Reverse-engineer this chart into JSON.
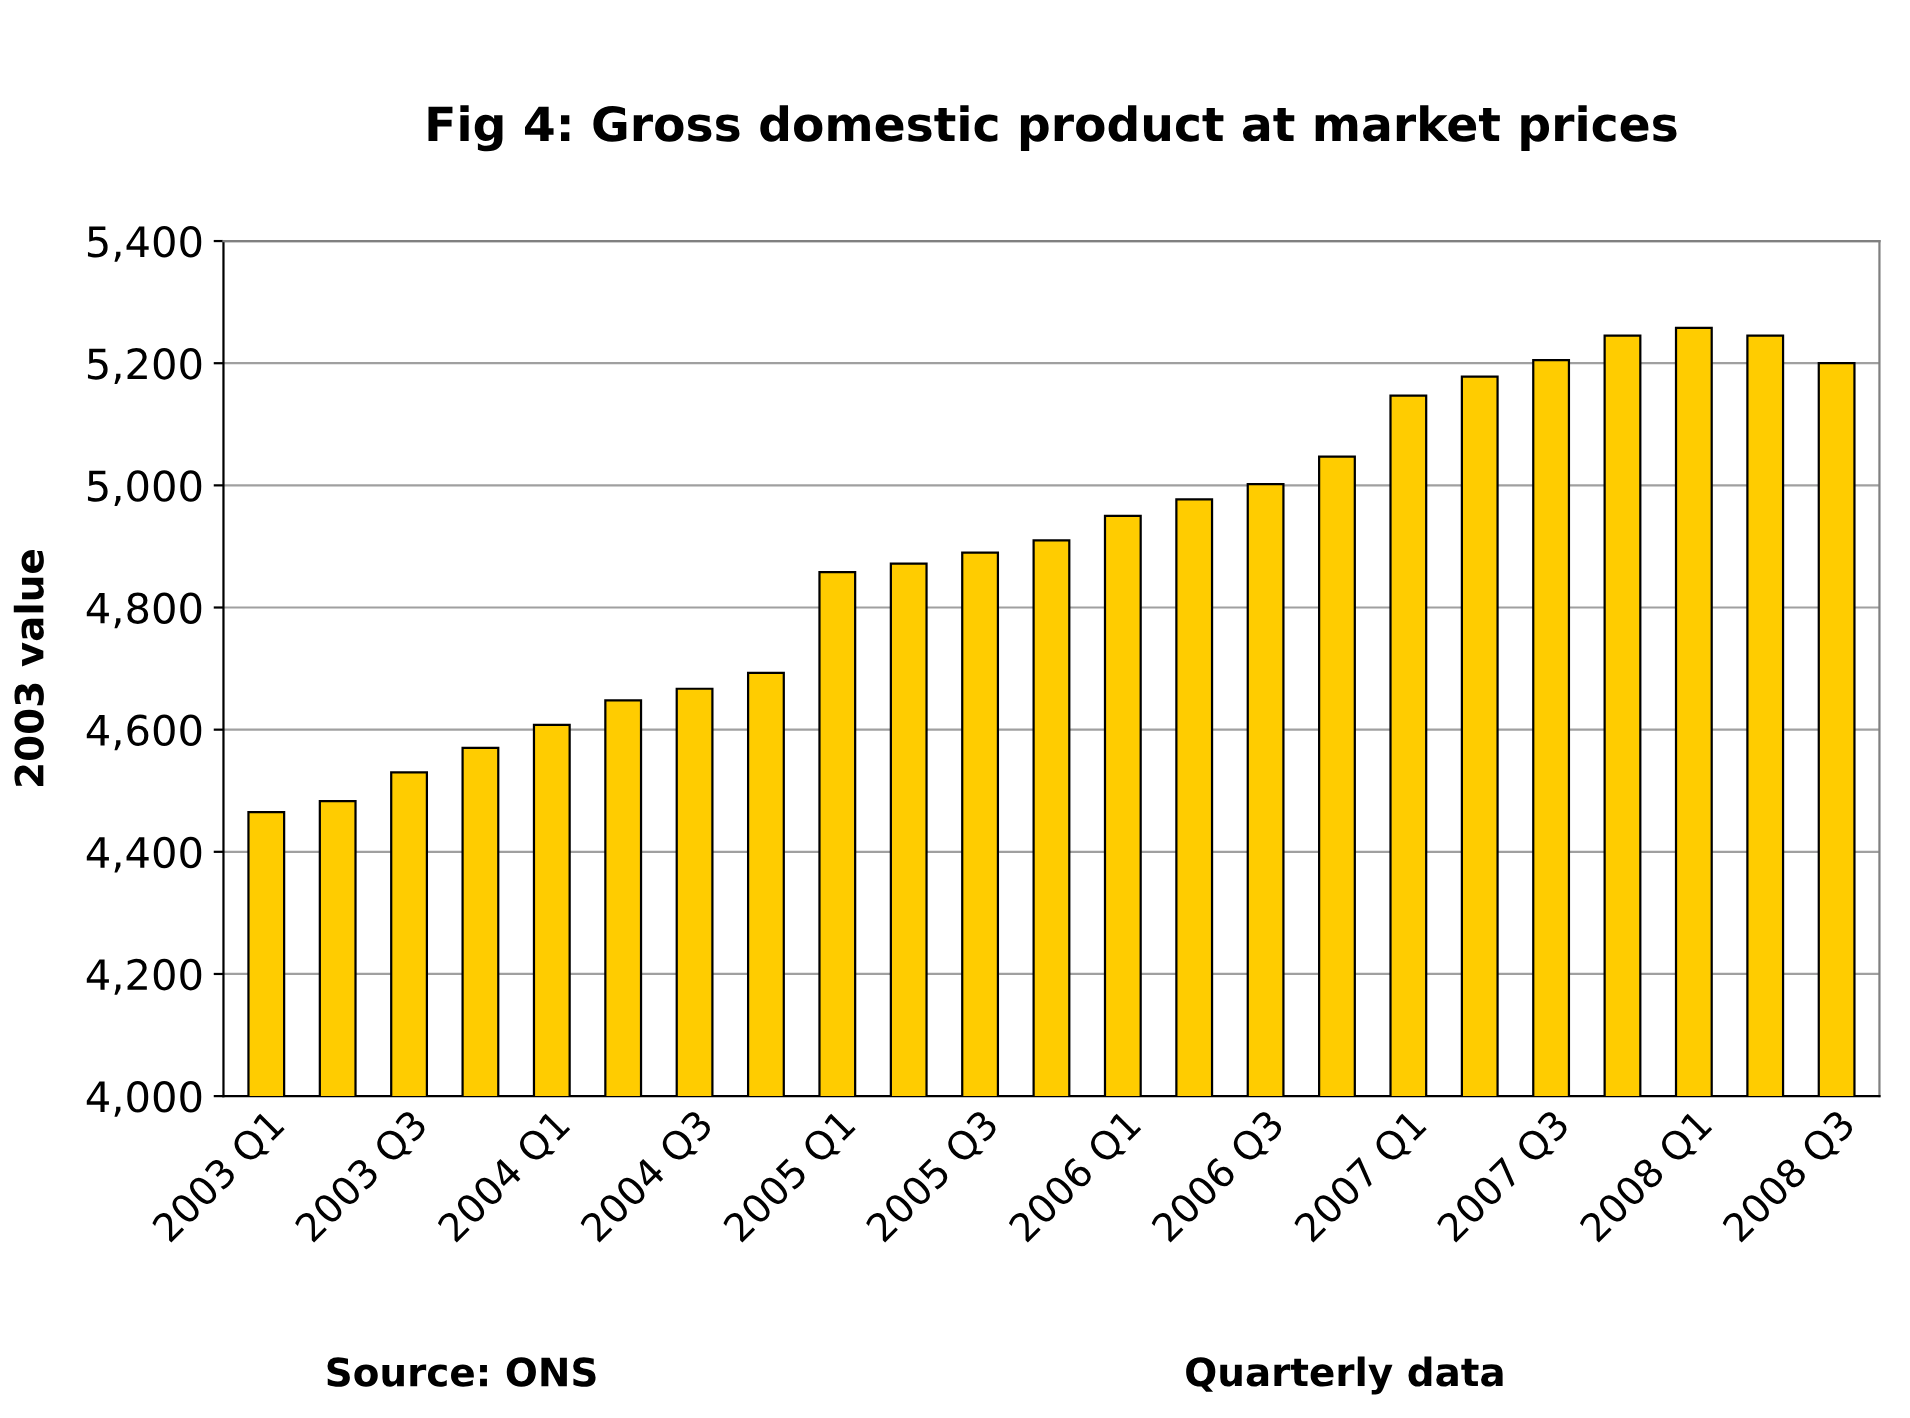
{
  "chart_data": {
    "type": "bar",
    "title": "Fig 4: Gross domestic product at market prices",
    "ylabel": "2003 value",
    "categories": [
      "2003 Q1",
      null,
      "2003 Q3",
      null,
      "2004 Q1",
      null,
      "2004 Q3",
      null,
      "2005 Q1",
      null,
      "2005 Q3",
      null,
      "2006 Q1",
      null,
      "2006 Q3",
      null,
      "2007 Q1",
      null,
      "2007 Q3",
      null,
      "2008 Q1",
      null,
      "2008 Q3"
    ],
    "values": [
      4465,
      4483,
      4530,
      4570,
      4608,
      4648,
      4667,
      4693,
      4858,
      4872,
      4890,
      4910,
      4950,
      4977,
      5002,
      5047,
      5147,
      5178,
      5205,
      5245,
      5258,
      5245,
      5200
    ],
    "color": "#ffcc00",
    "ylim": [
      4000,
      5400
    ],
    "yticks": [
      {
        "value": 4000,
        "label": "4,000"
      },
      {
        "value": 4200,
        "label": "4,200"
      },
      {
        "value": 4400,
        "label": "4,400"
      },
      {
        "value": 4600,
        "label": "4,600"
      },
      {
        "value": 4800,
        "label": "4,800"
      },
      {
        "value": 5000,
        "label": "5,000"
      },
      {
        "value": 5200,
        "label": "5,200"
      },
      {
        "value": 5400,
        "label": "5,400"
      }
    ],
    "grid": "y",
    "legend": false,
    "annotations": [
      "Source: ONS",
      "Quarterly data"
    ]
  }
}
